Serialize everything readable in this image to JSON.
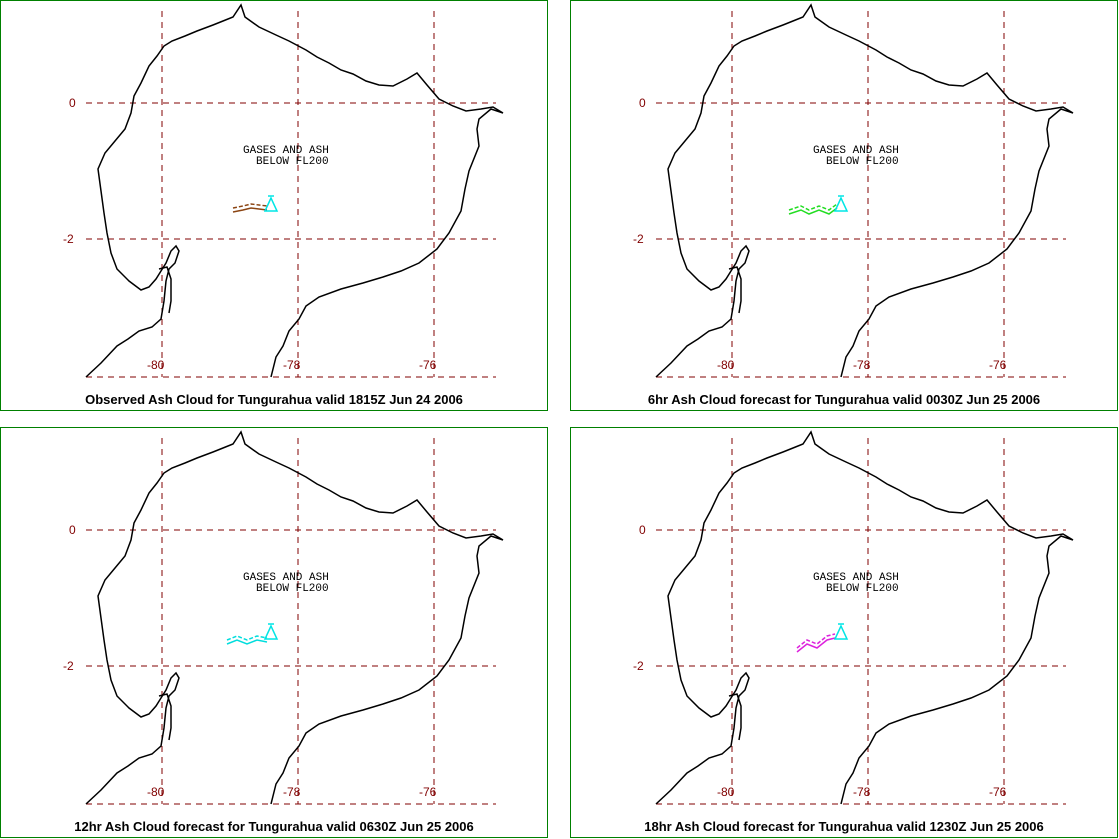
{
  "colors": {
    "frame": "#008000",
    "grid": "#800000",
    "coast": "#000000",
    "volcano": "#00e5e5"
  },
  "grid": {
    "lat_lines": [
      0,
      -2
    ],
    "lon_lines": [
      -80,
      -78,
      -76
    ],
    "lat_labels": [
      "0",
      "-2"
    ],
    "lon_labels": [
      "-80",
      "-78",
      "-76"
    ]
  },
  "annotation": {
    "line1": "GASES AND ASH",
    "line2": "BELOW FL200"
  },
  "panels": [
    {
      "caption": "Observed Ash Cloud for Tungurahua valid 1815Z Jun 24 2006",
      "cloud_color": "#8b4513"
    },
    {
      "caption": "6hr Ash Cloud forecast for Tungurahua valid 0030Z Jun 25 2006",
      "cloud_color": "#22dd22"
    },
    {
      "caption": "12hr Ash Cloud forecast for Tungurahua valid 0630Z Jun 25 2006",
      "cloud_color": "#00dddd"
    },
    {
      "caption": "18hr Ash Cloud forecast for Tungurahua valid 1230Z Jun 25 2006",
      "cloud_color": "#dd22dd"
    }
  ]
}
